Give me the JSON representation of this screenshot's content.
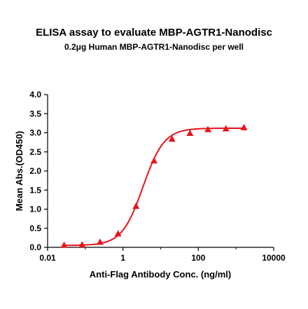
{
  "chart_data": {
    "type": "scatter",
    "title": "ELISA assay to evaluate MBP-AGTR1-Nanodisc",
    "subtitle": "0.2μg Human MBP-AGTR1-Nanodisc per well",
    "xlabel": "Anti-Flag Antibody Conc. (ng/ml)",
    "ylabel": "Mean Abs.(OD450)",
    "x_scale": "log",
    "xlim": [
      0.01,
      10000
    ],
    "ylim": [
      0,
      4
    ],
    "x_ticks": [
      0.01,
      1,
      100,
      10000
    ],
    "x_tick_labels": [
      "0.01",
      "1",
      "100",
      "10000"
    ],
    "y_ticks": [
      0,
      0.5,
      1,
      1.5,
      2,
      2.5,
      3,
      3.5,
      4
    ],
    "y_tick_labels": [
      "0.0",
      "0.5",
      "1.0",
      "1.5",
      "2.0",
      "2.5",
      "3.0",
      "3.5",
      "4.0"
    ],
    "grid": false,
    "legend": "none",
    "color": "#e8141b",
    "marker": "triangle",
    "fit": "four-parameter logistic (sigmoidal) curve",
    "series": [
      {
        "x": [
          0.0274,
          0.0823,
          0.247,
          0.741,
          2.22,
          6.67,
          20,
          60,
          180,
          540,
          1620
        ],
        "y": [
          0.06,
          0.07,
          0.14,
          0.36,
          1.08,
          2.27,
          2.84,
          2.99,
          3.09,
          3.11,
          3.14
        ]
      }
    ]
  }
}
